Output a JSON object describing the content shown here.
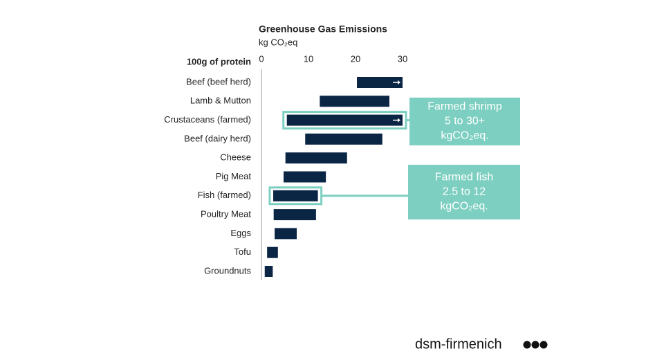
{
  "chart_data": {
    "type": "range-bar",
    "title": "Greenhouse Gas Emissions",
    "subtitle": "kg CO₂eq",
    "row_header": "100g of protein",
    "categories": [
      "Beef (beef herd)",
      "Lamb & Mutton",
      "Crustaceans (farmed)",
      "Beef (dairy herd)",
      "Cheese",
      "Pig Meat",
      "Fish (farmed)",
      "Poultry Meat",
      "Eggs",
      "Tofu",
      "Groundnuts"
    ],
    "low": [
      20.3,
      12.4,
      5.4,
      9.3,
      5.1,
      4.7,
      2.5,
      2.6,
      2.8,
      1.2,
      0.7
    ],
    "high": [
      30,
      27.2,
      30,
      25.7,
      18.2,
      13.7,
      12,
      11.6,
      7.5,
      3.5,
      2.4
    ],
    "arrow": [
      true,
      false,
      true,
      false,
      false,
      false,
      false,
      false,
      false,
      false,
      false
    ],
    "color": "#0b2545",
    "xlim": [
      0,
      30
    ],
    "xticks": [
      0,
      10,
      20,
      30
    ],
    "grid": false,
    "annotations": [
      {
        "target": 2,
        "lines": [
          "Farmed shrimp",
          "5 to 30+",
          "kgCO₂eq."
        ]
      },
      {
        "target": 6,
        "lines": [
          "Farmed fish",
          "2.5 to 12",
          "kgCO₂eq."
        ]
      }
    ],
    "annotation_color": "#7dcfc1"
  },
  "brand": "dsm-firmenich"
}
